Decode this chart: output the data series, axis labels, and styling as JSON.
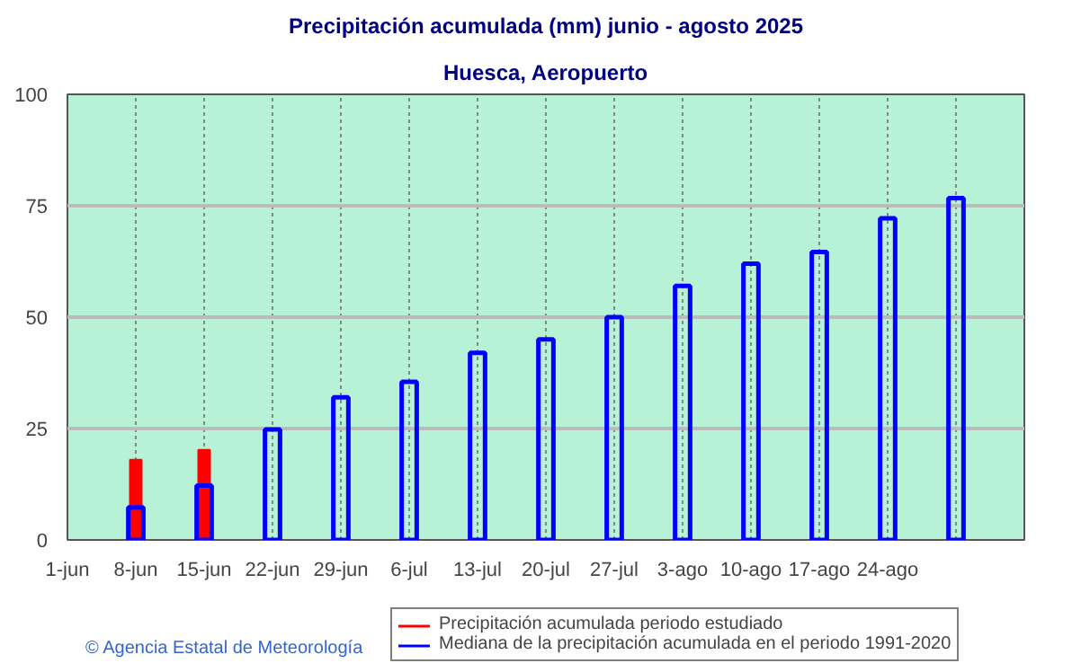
{
  "chart_data": {
    "type": "bar",
    "title": "Precipitación acumulada (mm) junio - agosto 2025",
    "subtitle": "Huesca, Aeropuerto",
    "categories": [
      "1-jun",
      "8-jun",
      "15-jun",
      "22-jun",
      "29-jun",
      "6-jul",
      "13-jul",
      "20-jul",
      "27-jul",
      "3-ago",
      "10-ago",
      "17-ago",
      "24-ago",
      null
    ],
    "series": [
      {
        "name": "Precipitación acumulada periodo estudiado",
        "color": "#ff0000",
        "values": [
          null,
          18,
          20.2,
          null,
          null,
          null,
          null,
          null,
          null,
          null,
          null,
          null,
          null,
          null
        ]
      },
      {
        "name": "Mediana de la precipitación acumulada en el periodo 1991-2020",
        "color": "#0000ff",
        "values": [
          null,
          7.3,
          12.2,
          24.8,
          32,
          35.5,
          42,
          45,
          50,
          57,
          62,
          64.6,
          72.2,
          76.7
        ]
      }
    ],
    "ylim": [
      0,
      100
    ],
    "yticks": [
      0,
      25,
      50,
      75,
      100
    ],
    "grid": true,
    "legend": "bottom right",
    "annotations": [
      "© Agencia Estatal de Meteorología"
    ]
  }
}
